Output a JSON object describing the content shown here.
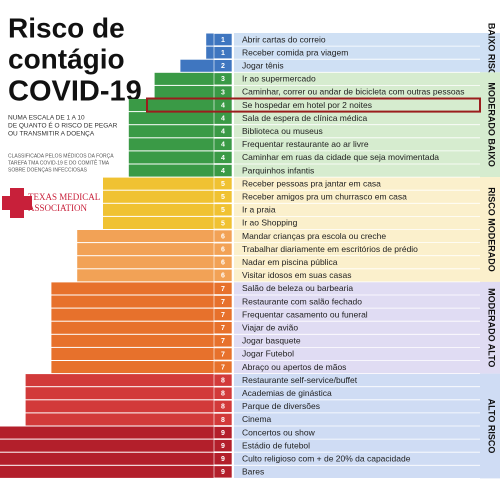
{
  "header": {
    "title_lines": [
      "Risco de",
      "contágio",
      "COVID-19"
    ],
    "description": [
      "NUMA ESCALA DE 1 A 10",
      "DE QUANTO É O RISCO DE PEGAR",
      "OU TRANSMITIR A DOENÇA"
    ],
    "source": [
      "CLASSIFICADA PELOS MÉDICOS DA FORÇA",
      "TAREFA TMA COVID-19 E DO COMITÊ TMA",
      "SOBRE DOENÇAS INFECCIOSAS"
    ],
    "logo": [
      "TEXAS MEDICAL",
      "ASSOCIATION"
    ]
  },
  "chart_data": {
    "type": "bar",
    "categories": [
      "Abrir cartas do correio",
      "Receber comida pra viagem",
      "Jogar tênis",
      "Ir ao supermercado",
      "Caminhar, correr ou andar de bicicleta com outras pessoas",
      "Se hospedar em hotel por 2 noites",
      "Sala de espera de clínica médica",
      "Biblioteca ou museus",
      "Frequentar restaurante ao ar livre",
      "Caminhar em ruas da cidade que seja movimentada",
      "Parquinhos infantis",
      "Receber pessoas pra jantar em casa",
      "Receber amigos pra um churrasco em casa",
      "Ir a praia",
      "Ir ao Shopping",
      "Mandar crianças pra escola ou creche",
      "Trabalhar diariamente em escritórios de prédio",
      "Nadar em piscina pública",
      "Visitar idosos em suas casas",
      "Salão de beleza ou barbearia",
      "Restaurante com salão fechado",
      "Frequentar casamento ou funeral",
      "Viajar de avião",
      "Jogar basquete",
      "Jogar Futebol",
      "Abraço ou apertos de mãos",
      "Restaurante self-service/buffet",
      "Academias de ginástica",
      "Parque de diversões",
      "Cinema",
      "Concertos ou show",
      "Estádio de futebol",
      "Culto religioso com + de 20% da capacidade",
      "Bares"
    ],
    "values": [
      1,
      1,
      2,
      3,
      3,
      4,
      4,
      4,
      4,
      4,
      4,
      5,
      5,
      5,
      5,
      6,
      6,
      6,
      6,
      7,
      7,
      7,
      7,
      7,
      7,
      7,
      8,
      8,
      8,
      8,
      9,
      9,
      9,
      9
    ],
    "level_colors": [
      "#3f76c0",
      "#3f76c0",
      "#3a9a46",
      "#3a9a46",
      "#f0c232",
      "#f2a256",
      "#e7712c",
      "#d23a3a",
      "#b31f2b"
    ],
    "groups": [
      {
        "label": "BAIXO RISCO",
        "color": "#cfe0f4"
      },
      {
        "label": "MODERADO BAIXO",
        "color": "#d6eccf"
      },
      {
        "label": "RISCO MODERADO",
        "color": "#fbf0cc"
      },
      {
        "label": "MODERADO ALTO",
        "color": "#e0dcf3"
      },
      {
        "label": "ALTO RISCO",
        "color": "#cfdcf4"
      }
    ]
  }
}
